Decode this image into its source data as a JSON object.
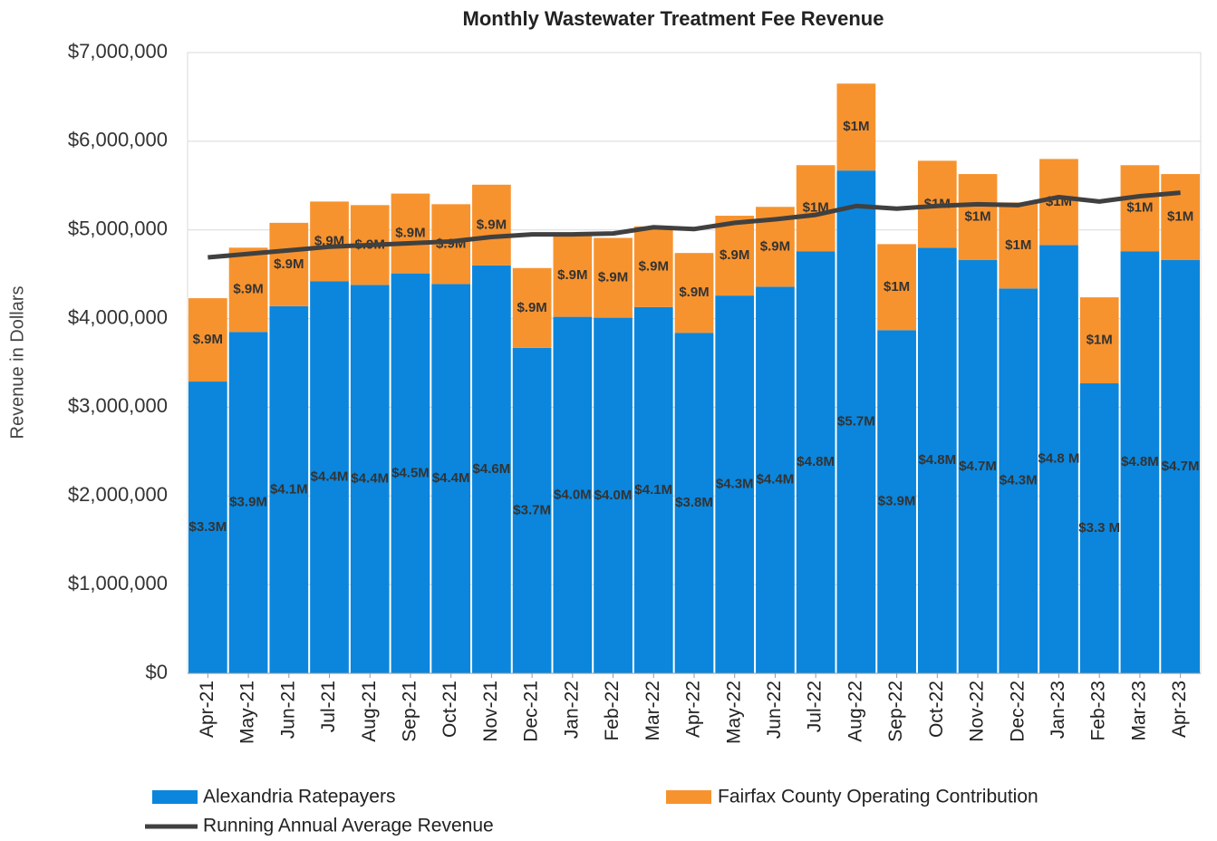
{
  "chart_data": {
    "type": "stacked-bar-line",
    "title": "Monthly Wastewater Treatment Fee Revenue",
    "y_axis_label": "Revenue in Dollars",
    "categories": [
      "Apr-21",
      "May-21",
      "Jun-21",
      "Jul-21",
      "Aug-21",
      "Sep-21",
      "Oct-21",
      "Nov-21",
      "Dec-21",
      "Jan-22",
      "Feb-22",
      "Mar-22",
      "Apr-22",
      "May-22",
      "Jun-22",
      "Jul-22",
      "Aug-22",
      "Sep-22",
      "Oct-22",
      "Nov-22",
      "Dec-22",
      "Jan-23",
      "Feb-23",
      "Mar-23",
      "Apr-23"
    ],
    "series": [
      {
        "name": "Alexandria Ratepayers",
        "color": "#0b86dc",
        "kind": "bar",
        "values": [
          3290000,
          3850000,
          4140000,
          4420000,
          4380000,
          4510000,
          4390000,
          4600000,
          3670000,
          4020000,
          4010000,
          4130000,
          3840000,
          4260000,
          4360000,
          4760000,
          5670000,
          3870000,
          4800000,
          4660000,
          4340000,
          4830000,
          3270000,
          4760000,
          4660000
        ],
        "value_labels": [
          "$3.3M",
          "$3.9M",
          "$4.1M",
          "$4.4M",
          "$4.4M",
          "$4.5M",
          "$4.4M",
          "$4.6M",
          "$3.7M",
          "$4.0M",
          "$4.0M",
          "$4.1M",
          "$3.8M",
          "$4.3M",
          "$4.4M",
          "$4.8M",
          "$5.7M",
          "$3.9M",
          "$4.8M",
          "$4.7M",
          "$4.3M",
          "$4.8 M",
          "$3.3 M",
          "$4.8M",
          "$4.7M"
        ]
      },
      {
        "name": "Fairfax County Operating Contribution",
        "color": "#f7932e",
        "kind": "bar",
        "values": [
          940000,
          950000,
          940000,
          900000,
          900000,
          900000,
          900000,
          910000,
          900000,
          930000,
          900000,
          910000,
          900000,
          900000,
          900000,
          970000,
          980000,
          970000,
          980000,
          970000,
          970000,
          970000,
          970000,
          970000,
          970000
        ],
        "value_labels": [
          "$.9M",
          "$.9M",
          "$.9M",
          "$.9M",
          "$.9M",
          "$.9M",
          "$.9M",
          "$.9M",
          "$.9M",
          "$.9M",
          "$.9M",
          "$.9M",
          "$.9M",
          "$.9M",
          "$.9M",
          "$1M",
          "$1M",
          "$1M",
          "$1M",
          "$1M",
          "$1M",
          "$1M",
          "$1M",
          "$1M",
          "$1M"
        ]
      },
      {
        "name": "Running Annual Average Revenue",
        "color": "#404040",
        "kind": "line",
        "values": [
          4690000,
          4730000,
          4770000,
          4810000,
          4830000,
          4850000,
          4870000,
          4920000,
          4950000,
          4950000,
          4960000,
          5030000,
          5010000,
          5080000,
          5120000,
          5170000,
          5270000,
          5240000,
          5270000,
          5290000,
          5280000,
          5370000,
          5320000,
          5380000,
          5420000
        ]
      }
    ],
    "ylim": [
      0,
      7000000
    ],
    "yticks": [
      {
        "value": 0,
        "label": "$0"
      },
      {
        "value": 1000000,
        "label": "$1,000,000"
      },
      {
        "value": 2000000,
        "label": "$2,000,000"
      },
      {
        "value": 3000000,
        "label": "$3,000,000"
      },
      {
        "value": 4000000,
        "label": "$4,000,000"
      },
      {
        "value": 5000000,
        "label": "$5,000,000"
      },
      {
        "value": 6000000,
        "label": "$6,000,000"
      },
      {
        "value": 7000000,
        "label": "$7,000,000"
      }
    ],
    "grid": true
  }
}
